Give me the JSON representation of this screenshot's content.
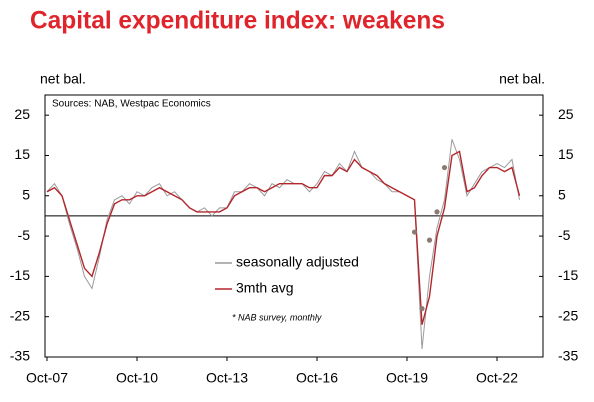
{
  "chart_data": {
    "type": "line",
    "title": "Capital expenditure index: weakens",
    "y_label": "net bal.",
    "y2_label": "net bal.",
    "source": "Sources:  NAB, Westpac Economics",
    "note": "* NAB survey, monthly",
    "categories": [
      "Oct-07",
      null,
      null,
      null,
      null,
      null,
      null,
      null,
      null,
      null,
      null,
      null,
      "Oct-10",
      null,
      null,
      null,
      null,
      null,
      null,
      null,
      null,
      null,
      null,
      null,
      "Oct-13",
      null,
      null,
      null,
      null,
      null,
      null,
      null,
      null,
      null,
      null,
      null,
      "Oct-16",
      null,
      null,
      null,
      null,
      null,
      null,
      null,
      null,
      null,
      null,
      null,
      "Oct-19",
      null,
      null,
      null,
      null,
      null,
      null,
      null,
      null,
      null,
      null,
      null,
      "Oct-22",
      null,
      null,
      null
    ],
    "series": [
      {
        "name": "seasonally adjusted",
        "color": "#9a9a9a",
        "values": [
          6,
          8,
          5,
          -2,
          -8,
          -15,
          -18,
          -10,
          -1,
          4,
          5,
          3,
          6,
          5,
          7,
          8,
          5,
          6,
          4,
          2,
          1,
          2,
          0,
          2,
          2,
          6,
          6,
          8,
          7,
          5,
          8,
          7,
          9,
          8,
          8,
          6,
          8,
          11,
          10,
          13,
          11,
          16,
          12,
          11,
          9,
          8,
          6,
          6,
          5,
          4,
          -33,
          -15,
          -3,
          4,
          19,
          14,
          5,
          8,
          11,
          12,
          13,
          12,
          14,
          4
        ]
      },
      {
        "name": "3mth avg",
        "color": "#b3262b",
        "values": [
          6,
          7,
          5,
          -1,
          -7,
          -13,
          -15,
          -9,
          -2,
          3,
          4,
          4,
          5,
          5,
          6,
          7,
          6,
          5,
          4,
          2,
          1,
          1,
          1,
          1,
          2,
          5,
          6,
          7,
          7,
          6,
          7,
          8,
          8,
          8,
          8,
          7,
          7,
          10,
          10,
          12,
          11,
          14,
          12,
          11,
          10,
          8,
          7,
          6,
          5,
          4,
          -27,
          -20,
          -5,
          2,
          15,
          16,
          6,
          7,
          10,
          12,
          12,
          11,
          12,
          5
        ]
      },
      {
        "color": "#8c7b73",
        "markers": true,
        "values": [
          null,
          null,
          null,
          null,
          null,
          null,
          null,
          null,
          null,
          null,
          null,
          null,
          null,
          null,
          null,
          null,
          null,
          null,
          null,
          null,
          null,
          null,
          null,
          null,
          null,
          null,
          null,
          null,
          null,
          null,
          null,
          null,
          null,
          null,
          null,
          null,
          null,
          null,
          null,
          null,
          null,
          null,
          null,
          null,
          null,
          null,
          null,
          null,
          null,
          -4,
          -23,
          -6,
          1,
          12,
          null,
          null,
          null,
          null,
          null,
          null,
          null,
          null,
          null,
          null
        ]
      }
    ],
    "ylim": [
      -35,
      30
    ],
    "yticks": [
      25,
      15,
      5,
      -5,
      -15,
      -25,
      -35
    ],
    "y2lim": [
      -35,
      30
    ],
    "y2ticks": [
      25,
      15,
      5,
      -5,
      -15,
      -25,
      -35
    ],
    "zero_line": true,
    "grid": false,
    "legend": "center"
  }
}
